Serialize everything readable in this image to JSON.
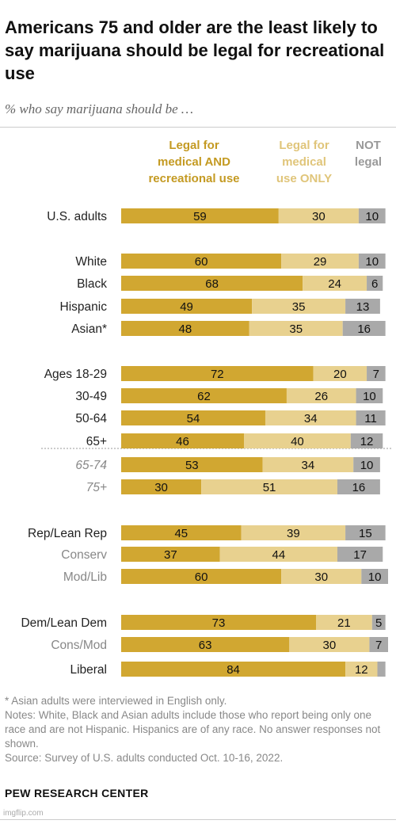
{
  "title": "Americans 75 and older are the least likely to say marijuana should be legal for recreational use",
  "subtitle": "% who say marijuana should be …",
  "notes": [
    "* Asian adults were interviewed in English only.",
    "Notes: White, Black and Asian adults include those who report being only one race and are not Hispanic. Hispanics are of any race. No answer responses not shown.",
    "Source: Survey of U.S. adults conducted Oct. 10-16, 2022."
  ],
  "source_name": "PEW RESEARCH CENTER",
  "watermark": "imgflip.com",
  "chart_data": {
    "type": "bar",
    "orientation": "horizontal",
    "stacked": true,
    "series": [
      {
        "name": "Legal for medical AND recreational use",
        "color": "#d1a731",
        "values": [
          59,
          60,
          68,
          49,
          48,
          72,
          62,
          54,
          46,
          53,
          30,
          45,
          37,
          60,
          73,
          63,
          84
        ]
      },
      {
        "name": "Legal for medical use ONLY",
        "color": "#e8d18f",
        "values": [
          30,
          29,
          24,
          35,
          35,
          20,
          26,
          34,
          40,
          34,
          51,
          39,
          44,
          30,
          21,
          30,
          12
        ]
      },
      {
        "name": "NOT legal",
        "color": "#a9a9a9",
        "values": [
          10,
          10,
          6,
          13,
          16,
          7,
          10,
          11,
          12,
          10,
          16,
          15,
          17,
          10,
          5,
          7,
          3
        ]
      }
    ],
    "series_label_lines": [
      [
        "Legal for",
        "medical AND",
        "recreational use"
      ],
      [
        "Legal for",
        "medical",
        "use ONLY"
      ],
      [
        "NOT",
        "legal"
      ]
    ],
    "series_label_colors": [
      "#c49a22",
      "#e0c57a",
      "#999999"
    ],
    "bar_labels": [
      "59",
      "60",
      "68",
      "49",
      "48",
      "72",
      "62",
      "54",
      "46",
      "53",
      "30",
      "45",
      "37",
      "60",
      "73",
      "63",
      "84",
      "30",
      "29",
      "24",
      "35",
      "35",
      "20",
      "26",
      "34",
      "40",
      "34",
      "51",
      "39",
      "44",
      "30",
      "21",
      "30",
      "12",
      "10",
      "10",
      "6",
      "13",
      "16",
      "7",
      "10",
      "11",
      "12",
      "10",
      "16",
      "15",
      "17",
      "10",
      "5",
      "7",
      ""
    ],
    "categories": [
      "U.S. adults",
      "White",
      "Black",
      "Hispanic",
      "Asian*",
      "Ages 18-29",
      "30-49",
      "50-64",
      "65+",
      "65-74",
      "75+",
      "Rep/Lean Rep",
      "Conserv",
      "Mod/Lib",
      "Dem/Lean Dem",
      "Cons/Mod",
      "Liberal"
    ],
    "category_styles": [
      "main",
      "main",
      "main",
      "main",
      "main",
      "main",
      "main",
      "main",
      "main",
      "sub-italic",
      "sub-italic",
      "main",
      "sub",
      "sub",
      "main",
      "sub",
      "main"
    ],
    "xlim": [
      0,
      100
    ],
    "grid": false,
    "legend": "top"
  }
}
